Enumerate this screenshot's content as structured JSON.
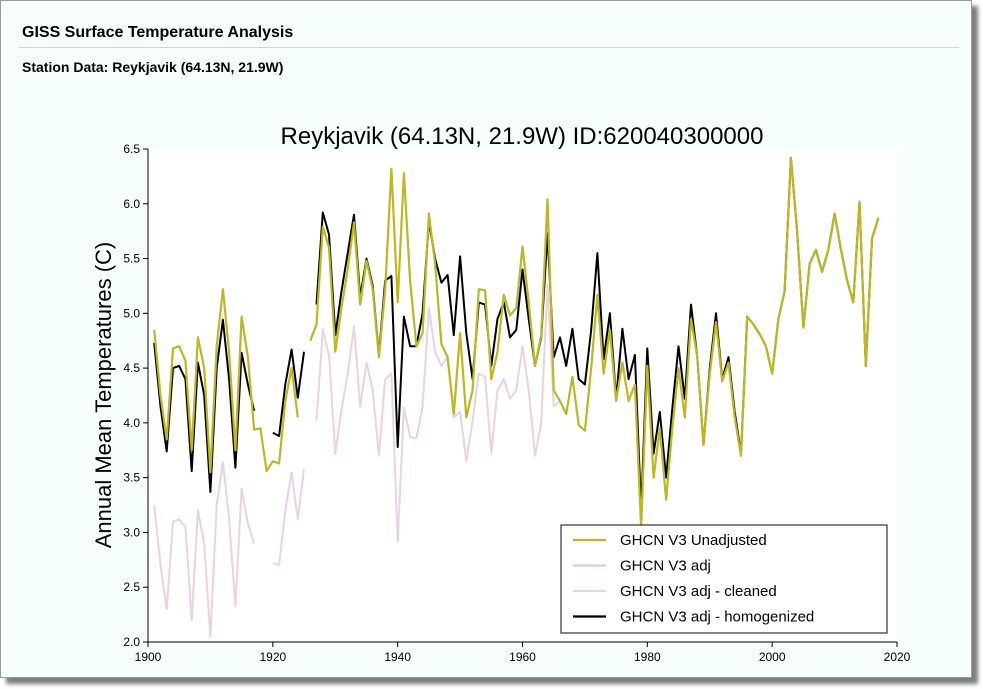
{
  "header": {
    "title": "GISS Surface Temperature Analysis",
    "subtitle": "Station Data: Reykjavik (64.13N, 21.9W)"
  },
  "chart_data": {
    "type": "line",
    "title": "Reykjavik (64.13N, 21.9W) ID:620040300000",
    "ylabel": "Annual Mean Temperatures (C)",
    "xlabel": "",
    "xlim": [
      1900,
      2020
    ],
    "ylim": [
      2.0,
      6.5
    ],
    "x_ticks": [
      "1900",
      "1920",
      "1940",
      "1960",
      "1980",
      "2000",
      "2020"
    ],
    "y_ticks": [
      "2.0",
      "2.5",
      "3.0",
      "3.5",
      "4.0",
      "4.5",
      "5.0",
      "5.5",
      "6.0",
      "6.5"
    ],
    "grid": false,
    "legend_position": "bottom-right",
    "series": [
      {
        "name": "GHCN V3 Unadjusted",
        "color": "#bdb820",
        "width": 2.2,
        "points": [
          [
            1901,
            4.85
          ],
          [
            1902,
            4.25
          ],
          [
            1903,
            3.85
          ],
          [
            1904,
            4.68
          ],
          [
            1905,
            4.7
          ],
          [
            1906,
            4.57
          ],
          [
            1907,
            3.75
          ],
          [
            1908,
            4.78
          ],
          [
            1909,
            4.5
          ],
          [
            1910,
            3.55
          ],
          [
            1911,
            4.7
          ],
          [
            1912,
            5.22
          ],
          [
            1913,
            4.65
          ],
          [
            1914,
            3.75
          ],
          [
            1915,
            4.97
          ],
          [
            1916,
            4.6
          ],
          [
            1917,
            3.94
          ],
          [
            1918,
            3.95
          ],
          [
            1919,
            3.56
          ],
          [
            1920,
            3.65
          ],
          [
            1921,
            3.63
          ],
          [
            1922,
            4.2
          ],
          [
            1923,
            4.5
          ],
          [
            1924,
            4.05
          ],
          null,
          [
            1926,
            4.75
          ],
          [
            1927,
            4.9
          ],
          [
            1928,
            5.79
          ],
          [
            1929,
            5.6
          ],
          [
            1930,
            4.65
          ],
          [
            1931,
            5.05
          ],
          [
            1932,
            5.4
          ],
          [
            1933,
            5.83
          ],
          [
            1934,
            5.08
          ],
          [
            1935,
            5.48
          ],
          [
            1936,
            5.22
          ],
          [
            1937,
            4.6
          ],
          [
            1938,
            5.22
          ],
          [
            1939,
            6.32
          ],
          [
            1940,
            5.1
          ],
          [
            1941,
            6.28
          ],
          [
            1942,
            5.3
          ],
          [
            1943,
            4.7
          ],
          [
            1944,
            4.82
          ],
          [
            1945,
            5.91
          ],
          [
            1946,
            5.45
          ],
          [
            1947,
            4.72
          ],
          [
            1948,
            4.6
          ],
          [
            1949,
            4.08
          ],
          [
            1950,
            4.82
          ],
          [
            1951,
            4.05
          ],
          [
            1952,
            4.3
          ],
          [
            1953,
            5.22
          ],
          [
            1954,
            5.21
          ],
          [
            1955,
            4.4
          ],
          [
            1956,
            4.65
          ],
          [
            1957,
            5.17
          ],
          [
            1958,
            4.98
          ],
          [
            1959,
            5.05
          ],
          [
            1960,
            5.61
          ],
          [
            1961,
            5.1
          ],
          [
            1962,
            4.52
          ],
          [
            1963,
            4.8
          ],
          [
            1964,
            6.04
          ],
          [
            1965,
            4.3
          ],
          [
            1966,
            4.2
          ],
          [
            1967,
            4.08
          ],
          [
            1968,
            4.42
          ],
          [
            1969,
            3.98
          ],
          [
            1970,
            3.93
          ],
          [
            1971,
            4.5
          ],
          [
            1972,
            5.17
          ],
          [
            1973,
            4.45
          ],
          [
            1974,
            4.85
          ],
          [
            1975,
            4.2
          ],
          [
            1976,
            4.55
          ],
          [
            1977,
            4.2
          ],
          [
            1978,
            4.35
          ],
          [
            1979,
            3.05
          ],
          [
            1980,
            4.52
          ],
          [
            1981,
            3.5
          ],
          [
            1982,
            3.95
          ],
          [
            1983,
            3.3
          ],
          [
            1984,
            3.95
          ],
          [
            1985,
            4.5
          ],
          [
            1986,
            4.05
          ],
          [
            1987,
            4.95
          ],
          [
            1988,
            4.6
          ],
          [
            1989,
            3.8
          ],
          [
            1990,
            4.45
          ],
          [
            1991,
            4.92
          ],
          [
            1992,
            4.38
          ],
          [
            1993,
            4.55
          ],
          [
            1994,
            4.05
          ],
          [
            1995,
            3.7
          ],
          [
            1996,
            4.97
          ],
          [
            1997,
            4.9
          ],
          [
            1998,
            4.81
          ],
          [
            1999,
            4.7
          ],
          [
            2000,
            4.45
          ],
          [
            2001,
            4.95
          ],
          [
            2002,
            5.2
          ],
          [
            2003,
            6.42
          ],
          [
            2004,
            5.75
          ],
          [
            2005,
            4.87
          ],
          [
            2006,
            5.45
          ],
          [
            2007,
            5.58
          ],
          [
            2008,
            5.38
          ],
          [
            2009,
            5.58
          ],
          [
            2010,
            5.91
          ],
          [
            2011,
            5.59
          ],
          [
            2012,
            5.3
          ],
          [
            2013,
            5.1
          ],
          [
            2014,
            6.02
          ],
          [
            2015,
            4.52
          ],
          [
            2016,
            5.68
          ],
          [
            2017,
            5.87
          ]
        ]
      },
      {
        "name": "GHCN V3 adj",
        "color": "#d9cde8",
        "width": 1.8,
        "points": []
      },
      {
        "name": "GHCN V3 adj - cleaned",
        "color": "#ead2e2",
        "width": 2,
        "points": [
          [
            1901,
            3.25
          ],
          [
            1902,
            2.7
          ],
          [
            1903,
            2.3
          ],
          [
            1904,
            3.1
          ],
          [
            1905,
            3.12
          ],
          [
            1906,
            3.05
          ],
          [
            1907,
            2.2
          ],
          [
            1908,
            3.2
          ],
          [
            1909,
            2.9
          ],
          [
            1910,
            2.05
          ],
          [
            1911,
            3.25
          ],
          [
            1912,
            3.64
          ],
          [
            1913,
            3.12
          ],
          [
            1914,
            2.33
          ],
          [
            1915,
            3.4
          ],
          [
            1916,
            3.08
          ],
          [
            1917,
            2.9
          ],
          null,
          [
            1920,
            2.72
          ],
          [
            1921,
            2.7
          ],
          [
            1922,
            3.2
          ],
          [
            1923,
            3.55
          ],
          [
            1924,
            3.12
          ],
          [
            1925,
            3.58
          ],
          null,
          [
            1927,
            4.02
          ],
          [
            1928,
            4.85
          ],
          [
            1929,
            4.62
          ],
          [
            1930,
            3.72
          ],
          [
            1931,
            4.12
          ],
          [
            1932,
            4.45
          ],
          [
            1933,
            4.88
          ],
          [
            1934,
            4.15
          ],
          [
            1935,
            4.55
          ],
          [
            1936,
            4.3
          ],
          [
            1937,
            3.7
          ],
          [
            1938,
            4.4
          ],
          [
            1939,
            4.45
          ],
          [
            1940,
            2.92
          ],
          [
            1941,
            4.14
          ],
          [
            1942,
            3.87
          ],
          [
            1943,
            3.86
          ],
          [
            1944,
            4.15
          ],
          [
            1945,
            5.05
          ],
          [
            1946,
            4.65
          ],
          [
            1947,
            4.52
          ],
          [
            1948,
            4.6
          ],
          [
            1949,
            4.05
          ],
          [
            1950,
            4.1
          ],
          [
            1951,
            3.65
          ],
          [
            1952,
            4.02
          ],
          [
            1953,
            4.45
          ],
          [
            1954,
            4.42
          ],
          [
            1955,
            3.72
          ],
          [
            1956,
            4.3
          ],
          [
            1957,
            4.4
          ],
          [
            1958,
            4.22
          ],
          [
            1959,
            4.3
          ],
          [
            1960,
            4.7
          ],
          [
            1961,
            4.3
          ],
          [
            1962,
            3.7
          ],
          [
            1963,
            4.0
          ],
          [
            1964,
            5.26
          ],
          [
            1965,
            4.15
          ],
          [
            1966,
            4.2
          ]
        ]
      },
      {
        "name": "GHCN V3 adj - homogenized",
        "color": "#000000",
        "width": 2,
        "points": [
          [
            1901,
            4.73
          ],
          [
            1902,
            4.15
          ],
          [
            1903,
            3.74
          ],
          [
            1904,
            4.5
          ],
          [
            1905,
            4.52
          ],
          [
            1906,
            4.4
          ],
          [
            1907,
            3.56
          ],
          [
            1908,
            4.55
          ],
          [
            1909,
            4.25
          ],
          [
            1910,
            3.37
          ],
          [
            1911,
            4.5
          ],
          [
            1912,
            4.94
          ],
          [
            1913,
            4.4
          ],
          [
            1914,
            3.59
          ],
          [
            1915,
            4.64
          ],
          [
            1916,
            4.35
          ],
          [
            1917,
            4.11
          ],
          null,
          [
            1920,
            3.91
          ],
          [
            1921,
            3.88
          ],
          [
            1922,
            4.35
          ],
          [
            1923,
            4.67
          ],
          [
            1924,
            4.23
          ],
          [
            1925,
            4.65
          ],
          null,
          [
            1927,
            5.08
          ],
          [
            1928,
            5.92
          ],
          [
            1929,
            5.72
          ],
          [
            1930,
            4.8
          ],
          [
            1931,
            5.2
          ],
          [
            1932,
            5.55
          ],
          [
            1933,
            5.9
          ],
          [
            1934,
            5.15
          ],
          [
            1935,
            5.5
          ],
          [
            1936,
            5.25
          ],
          [
            1937,
            4.62
          ],
          [
            1938,
            5.3
          ],
          [
            1939,
            5.34
          ],
          [
            1940,
            3.78
          ],
          [
            1941,
            4.97
          ],
          [
            1942,
            4.7
          ],
          [
            1943,
            4.7
          ],
          [
            1944,
            5.0
          ],
          [
            1945,
            5.84
          ],
          [
            1946,
            5.5
          ],
          [
            1947,
            5.28
          ],
          [
            1948,
            5.35
          ],
          [
            1949,
            4.8
          ],
          [
            1950,
            5.52
          ],
          [
            1951,
            4.82
          ],
          [
            1952,
            4.4
          ],
          [
            1953,
            5.1
          ],
          [
            1954,
            5.08
          ],
          [
            1955,
            4.52
          ],
          [
            1956,
            4.95
          ],
          [
            1957,
            5.1
          ],
          [
            1958,
            4.78
          ],
          [
            1959,
            4.85
          ],
          [
            1960,
            5.4
          ],
          [
            1961,
            4.95
          ],
          [
            1962,
            4.52
          ],
          [
            1963,
            4.78
          ],
          [
            1964,
            5.73
          ],
          [
            1965,
            4.6
          ],
          [
            1966,
            4.78
          ],
          [
            1967,
            4.52
          ],
          [
            1968,
            4.86
          ],
          [
            1969,
            4.4
          ],
          [
            1970,
            4.35
          ],
          [
            1971,
            4.85
          ],
          [
            1972,
            5.55
          ],
          [
            1973,
            4.58
          ],
          [
            1974,
            5.0
          ],
          [
            1975,
            4.22
          ],
          [
            1976,
            4.86
          ],
          [
            1977,
            4.4
          ],
          [
            1978,
            4.62
          ],
          [
            1979,
            3.2
          ],
          [
            1980,
            4.68
          ],
          [
            1981,
            3.72
          ],
          [
            1982,
            4.1
          ],
          [
            1983,
            3.5
          ],
          [
            1984,
            4.13
          ],
          [
            1985,
            4.7
          ],
          [
            1986,
            4.22
          ],
          [
            1987,
            5.08
          ],
          [
            1988,
            4.6
          ],
          [
            1989,
            3.8
          ],
          [
            1990,
            4.5
          ],
          [
            1991,
            5.0
          ],
          [
            1992,
            4.4
          ],
          [
            1993,
            4.6
          ],
          [
            1994,
            4.1
          ],
          [
            1995,
            3.72
          ],
          [
            1996,
            4.97
          ],
          [
            1997,
            4.9
          ],
          [
            1998,
            4.81
          ],
          [
            1999,
            4.7
          ],
          [
            2000,
            4.45
          ],
          [
            2001,
            4.95
          ],
          [
            2002,
            5.2
          ],
          [
            2003,
            6.42
          ],
          [
            2004,
            5.75
          ],
          [
            2005,
            4.87
          ],
          [
            2006,
            5.45
          ],
          [
            2007,
            5.58
          ],
          [
            2008,
            5.38
          ],
          [
            2009,
            5.58
          ],
          [
            2010,
            5.91
          ],
          [
            2011,
            5.59
          ],
          [
            2012,
            5.3
          ],
          [
            2013,
            5.1
          ],
          [
            2014,
            6.02
          ],
          [
            2015,
            4.52
          ],
          [
            2016,
            5.68
          ],
          [
            2017,
            5.87
          ]
        ]
      }
    ],
    "draw_order": [
      1,
      2,
      3,
      0
    ]
  }
}
